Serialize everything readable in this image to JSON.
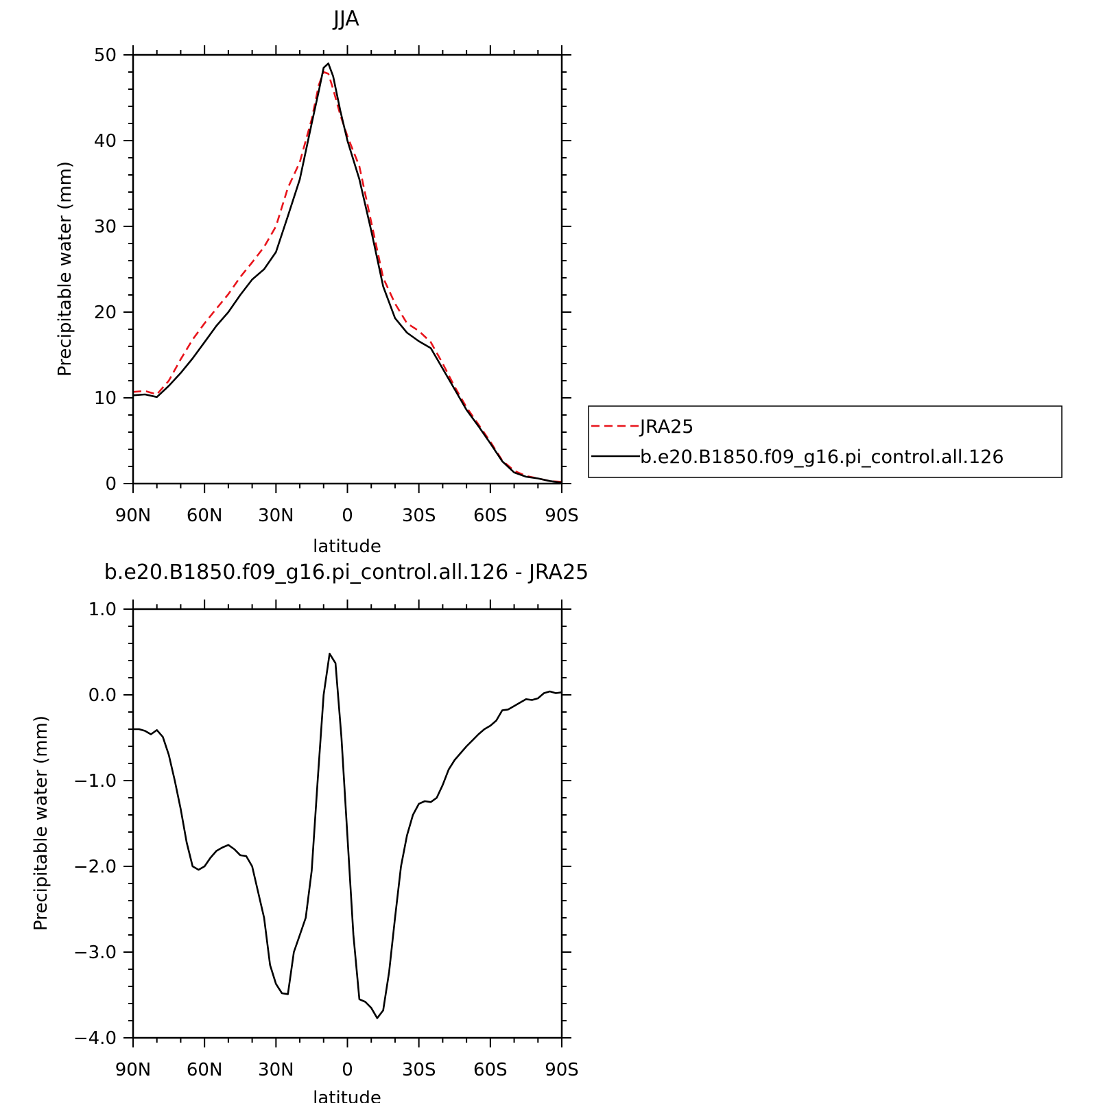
{
  "chart_data": [
    {
      "type": "line",
      "title": "JJA",
      "xlabel": "latitude",
      "ylabel": "Precipitable water (mm)",
      "xlim": [
        90,
        -90
      ],
      "ylim": [
        0,
        50
      ],
      "xticks": [
        90,
        60,
        30,
        0,
        -30,
        -60,
        -90
      ],
      "xtick_labels": [
        "90N",
        "60N",
        "30N",
        "0",
        "30S",
        "60S",
        "90S"
      ],
      "yticks": [
        0,
        10,
        20,
        30,
        40,
        50
      ],
      "ytick_labels": [
        "0",
        "10",
        "20",
        "30",
        "40",
        "50"
      ],
      "legend": "right",
      "series": [
        {
          "name": "JRA25",
          "color": "#e8141b",
          "dash": "dashed",
          "x": [
            90,
            85,
            80,
            75,
            70,
            65,
            60,
            55,
            50,
            45,
            40,
            35,
            30,
            25,
            20,
            15,
            12,
            10,
            8,
            6,
            3,
            0,
            -5,
            -10,
            -15,
            -20,
            -25,
            -30,
            -35,
            -40,
            -45,
            -50,
            -55,
            -60,
            -65,
            -70,
            -75,
            -80,
            -85,
            -90
          ],
          "values": [
            10.7,
            10.8,
            10.4,
            12.0,
            14.5,
            16.8,
            18.7,
            20.4,
            22.1,
            24.1,
            25.8,
            27.6,
            30.0,
            34.5,
            37.5,
            42.5,
            46.5,
            48.0,
            47.8,
            46.0,
            43.0,
            40.5,
            37.0,
            30.5,
            24.0,
            21.0,
            18.7,
            17.8,
            16.5,
            14.0,
            11.3,
            8.9,
            6.9,
            4.9,
            2.7,
            1.5,
            0.9,
            0.6,
            0.3,
            0.2
          ]
        },
        {
          "name": "b.e20.B1850.f09_g16.pi_control.all.126",
          "color": "#000000",
          "dash": "solid",
          "x": [
            90,
            85,
            80,
            75,
            70,
            65,
            60,
            55,
            50,
            45,
            40,
            35,
            30,
            25,
            20,
            15,
            12,
            10,
            8,
            6,
            3,
            0,
            -5,
            -10,
            -15,
            -20,
            -25,
            -30,
            -35,
            -40,
            -45,
            -50,
            -55,
            -60,
            -65,
            -70,
            -75,
            -80,
            -85,
            -90
          ],
          "values": [
            10.3,
            10.4,
            10.1,
            11.4,
            12.9,
            14.6,
            16.5,
            18.4,
            20.0,
            22.0,
            23.8,
            25.0,
            27.0,
            31.2,
            35.5,
            42.0,
            45.8,
            48.5,
            49.0,
            47.5,
            43.5,
            40.0,
            35.5,
            29.5,
            23.0,
            19.3,
            17.6,
            16.6,
            15.8,
            13.4,
            11.0,
            8.6,
            6.7,
            4.7,
            2.6,
            1.3,
            0.8,
            0.6,
            0.3,
            0.1
          ]
        }
      ]
    },
    {
      "type": "line",
      "title": "b.e20.B1850.f09_g16.pi_control.all.126 - JRA25",
      "xlabel": "latitude",
      "ylabel": "Precipitable water (mm)",
      "xlim": [
        90,
        -90
      ],
      "ylim": [
        -4.0,
        1.0
      ],
      "xticks": [
        90,
        60,
        30,
        0,
        -30,
        -60,
        -90
      ],
      "xtick_labels": [
        "90N",
        "60N",
        "30N",
        "0",
        "30S",
        "60S",
        "90S"
      ],
      "yticks": [
        1.0,
        0.0,
        -1.0,
        -2.0,
        -3.0,
        -4.0
      ],
      "ytick_labels": [
        "1.0",
        "0.0",
        "−1.0",
        "−2.0",
        "−3.0",
        "−4.0"
      ],
      "series": [
        {
          "color": "#000000",
          "dash": "solid",
          "x": [
            90,
            87.5,
            85,
            82.5,
            80,
            77.5,
            75,
            72.5,
            70,
            67.5,
            65,
            62.5,
            60,
            57.5,
            55,
            52.5,
            50,
            47.5,
            45,
            42.5,
            40,
            37.5,
            35,
            32.5,
            30,
            27.5,
            25,
            22.5,
            20,
            17.5,
            15,
            12.5,
            10,
            7.5,
            5,
            2.5,
            0,
            -2.5,
            -5,
            -7.5,
            -10,
            -12.5,
            -15,
            -17.5,
            -20,
            -22.5,
            -25,
            -27.5,
            -30,
            -32.5,
            -35,
            -37.5,
            -40,
            -42.5,
            -45,
            -47.5,
            -50,
            -52.5,
            -55,
            -57.5,
            -60,
            -62.5,
            -65,
            -67.5,
            -70,
            -72.5,
            -75,
            -77.5,
            -80,
            -82.5,
            -85,
            -87.5,
            -90
          ],
          "values": [
            -0.4,
            -0.4,
            -0.42,
            -0.46,
            -0.41,
            -0.49,
            -0.7,
            -1.0,
            -1.33,
            -1.72,
            -2.0,
            -2.04,
            -2.0,
            -1.9,
            -1.82,
            -1.78,
            -1.75,
            -1.8,
            -1.87,
            -1.88,
            -2.0,
            -2.3,
            -2.6,
            -3.15,
            -3.37,
            -3.48,
            -3.49,
            -3.0,
            -2.8,
            -2.6,
            -2.05,
            -1.0,
            0.0,
            0.48,
            0.37,
            -0.5,
            -1.65,
            -2.8,
            -3.55,
            -3.58,
            -3.65,
            -3.77,
            -3.68,
            -3.23,
            -2.6,
            -2.0,
            -1.64,
            -1.4,
            -1.27,
            -1.24,
            -1.25,
            -1.2,
            -1.05,
            -0.87,
            -0.76,
            -0.68,
            -0.6,
            -0.53,
            -0.46,
            -0.4,
            -0.36,
            -0.3,
            -0.18,
            -0.17,
            -0.13,
            -0.09,
            -0.05,
            -0.06,
            -0.04,
            0.02,
            0.04,
            0.02,
            0.03
          ]
        }
      ]
    }
  ]
}
